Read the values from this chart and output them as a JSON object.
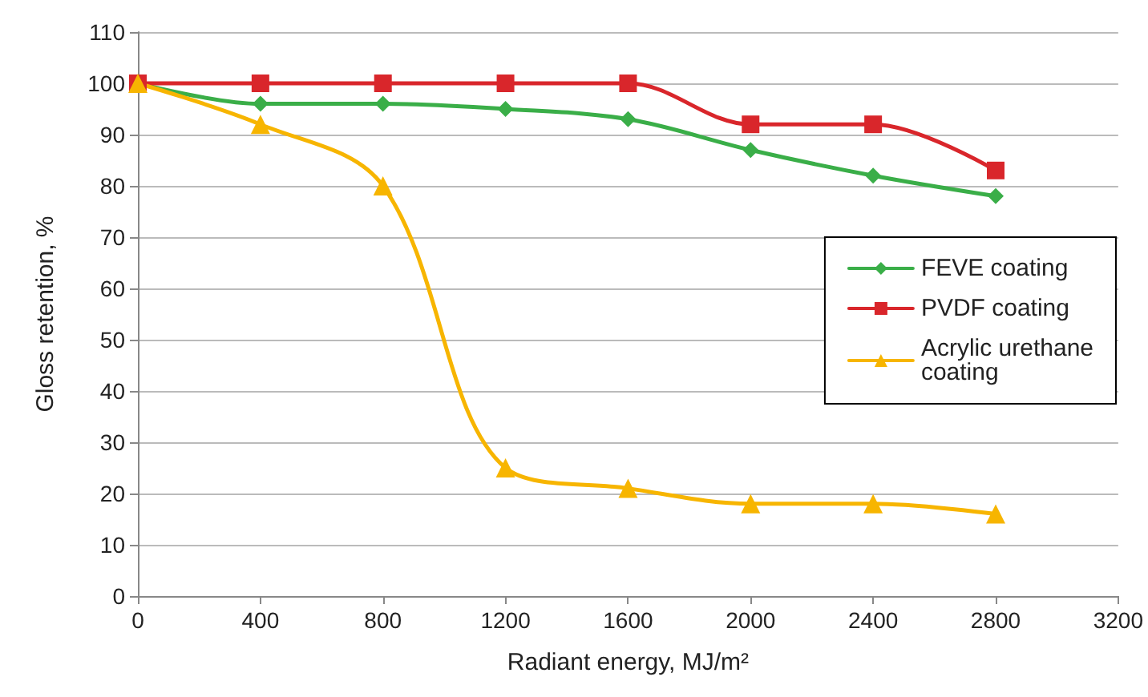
{
  "chart_data": {
    "type": "line",
    "xlabel": "Radiant energy, MJ/m²",
    "ylabel": "Gloss retention, %",
    "x": [
      0,
      400,
      800,
      1200,
      1600,
      2000,
      2400,
      2800
    ],
    "xlim": [
      0,
      3200
    ],
    "xticks": [
      0,
      400,
      800,
      1200,
      1600,
      2000,
      2400,
      2800,
      3200
    ],
    "ylim": [
      0,
      110
    ],
    "yticks": [
      0,
      10,
      20,
      30,
      40,
      50,
      60,
      70,
      80,
      90,
      100,
      110
    ],
    "grid": "y",
    "legend": "right",
    "line_style": "solid",
    "series": [
      {
        "name": "FEVE coating",
        "color": "#3aae48",
        "marker": "diamond",
        "values": [
          100,
          96,
          96,
          95,
          93,
          87,
          82,
          78
        ]
      },
      {
        "name": "PVDF coating",
        "color": "#d9262b",
        "marker": "square",
        "values": [
          100,
          100,
          100,
          100,
          100,
          92,
          92,
          83
        ]
      },
      {
        "name": "Acrylic urethane coating",
        "color": "#f7b500",
        "marker": "triangle",
        "values": [
          100,
          92,
          80,
          25,
          21,
          18,
          18,
          16
        ]
      }
    ]
  }
}
